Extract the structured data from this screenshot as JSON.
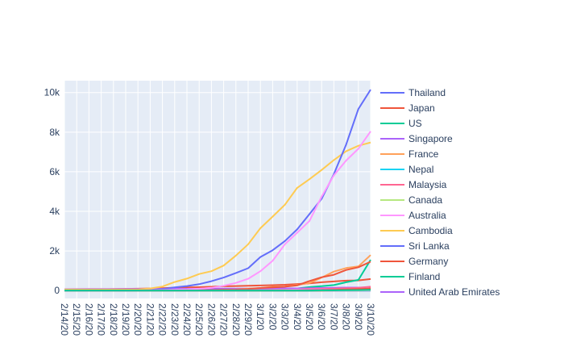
{
  "chart_data": {
    "type": "line",
    "title": "",
    "xlabel": "",
    "ylabel": "",
    "x": [
      "2/14/20",
      "2/15/20",
      "2/16/20",
      "2/17/20",
      "2/18/20",
      "2/19/20",
      "2/20/20",
      "2/21/20",
      "2/22/20",
      "2/23/20",
      "2/24/20",
      "2/25/20",
      "2/26/20",
      "2/27/20",
      "2/28/20",
      "2/29/20",
      "3/1/20",
      "3/2/20",
      "3/3/20",
      "3/4/20",
      "3/5/20",
      "3/6/20",
      "3/7/20",
      "3/8/20",
      "3/9/20",
      "3/10/20"
    ],
    "ylim": [
      -400,
      10600
    ],
    "yticks": [
      0,
      2000,
      4000,
      6000,
      8000,
      10000
    ],
    "ytick_labels": [
      "0",
      "2k",
      "4k",
      "6k",
      "8k",
      "10k"
    ],
    "grid": true,
    "plot_bg": "#e5ecf6",
    "legend_position": "right",
    "series": [
      {
        "name": "Thailand",
        "color": "#636efa",
        "values": [
          33,
          33,
          34,
          35,
          35,
          35,
          35,
          35,
          35,
          35,
          35,
          37,
          40,
          40,
          41,
          42,
          42,
          43,
          43,
          43,
          47,
          48,
          50,
          50,
          50,
          53
        ]
      },
      {
        "name": "Japan",
        "color": "#ef553b",
        "values": [
          33,
          53,
          59,
          66,
          74,
          84,
          94,
          105,
          122,
          147,
          159,
          170,
          189,
          214,
          228,
          241,
          256,
          274,
          293,
          331,
          360,
          420,
          461,
          502,
          511,
          581
        ]
      },
      {
        "name": "US",
        "color": "#00cc96",
        "values": [
          15,
          15,
          15,
          15,
          15,
          15,
          15,
          15,
          15,
          15,
          15,
          15,
          15,
          16,
          16,
          24,
          30,
          53,
          73,
          104,
          174,
          221,
          278,
          417,
          537,
          1550
        ]
      },
      {
        "name": "Singapore",
        "color": "#ab63fa",
        "values": [
          67,
          72,
          75,
          77,
          81,
          84,
          84,
          85,
          85,
          89,
          89,
          91,
          93,
          96,
          98,
          102,
          106,
          108,
          110,
          110,
          117,
          130,
          138,
          150,
          150,
          160
        ]
      },
      {
        "name": "France",
        "color": "#ffa15a",
        "values": [
          11,
          12,
          12,
          12,
          12,
          12,
          12,
          12,
          12,
          12,
          12,
          14,
          18,
          38,
          57,
          100,
          130,
          191,
          204,
          288,
          380,
          656,
          957,
          1134,
          1217,
          1792
        ]
      },
      {
        "name": "Nepal",
        "color": "#19d3f3",
        "values": [
          1,
          1,
          1,
          1,
          1,
          1,
          1,
          1,
          1,
          1,
          1,
          1,
          1,
          1,
          1,
          1,
          1,
          1,
          1,
          1,
          1,
          1,
          1,
          1,
          1,
          1
        ]
      },
      {
        "name": "Malaysia",
        "color": "#ff6692",
        "values": [
          19,
          22,
          22,
          22,
          22,
          22,
          22,
          22,
          22,
          22,
          22,
          22,
          22,
          23,
          25,
          29,
          29,
          36,
          50,
          50,
          83,
          93,
          99,
          117,
          129,
          149
        ]
      },
      {
        "name": "Canada",
        "color": "#b6e880",
        "values": [
          7,
          7,
          7,
          8,
          8,
          8,
          8,
          9,
          9,
          9,
          9,
          11,
          11,
          13,
          14,
          20,
          24,
          27,
          30,
          33,
          37,
          49,
          54,
          64,
          77,
          79
        ]
      },
      {
        "name": "Australia",
        "color": "#ff97ff",
        "values": [
          15,
          15,
          15,
          15,
          15,
          15,
          15,
          15,
          22,
          22,
          22,
          22,
          23,
          23,
          25,
          26,
          28,
          30,
          39,
          52,
          55,
          60,
          63,
          76,
          91,
          107
        ]
      },
      {
        "name": "Cambodia",
        "color": "#fecb52",
        "values": [
          1,
          1,
          1,
          1,
          1,
          1,
          1,
          1,
          1,
          1,
          1,
          1,
          1,
          1,
          1,
          1,
          1,
          1,
          1,
          1,
          1,
          1,
          2,
          2,
          2,
          2
        ]
      },
      {
        "name": "Sri Lanka",
        "color": "#636efa",
        "values": [
          1,
          1,
          1,
          1,
          1,
          1,
          1,
          1,
          1,
          1,
          1,
          1,
          1,
          1,
          1,
          1,
          1,
          1,
          1,
          1,
          1,
          1,
          1,
          1,
          1,
          1
        ]
      },
      {
        "name": "Germany",
        "color": "#ef553b",
        "values": [
          16,
          16,
          16,
          16,
          16,
          16,
          16,
          16,
          16,
          16,
          16,
          17,
          27,
          46,
          48,
          79,
          130,
          159,
          196,
          262,
          482,
          670,
          799,
          1040,
          1176,
          1457
        ]
      },
      {
        "name": "Finland",
        "color": "#00cc96",
        "values": [
          1,
          1,
          1,
          1,
          1,
          1,
          1,
          1,
          1,
          1,
          1,
          1,
          2,
          2,
          2,
          3,
          6,
          6,
          6,
          6,
          12,
          15,
          19,
          23,
          30,
          40
        ]
      },
      {
        "name": "United Arab Emirates",
        "color": "#ab63fa",
        "values": [
          8,
          8,
          9,
          9,
          9,
          9,
          9,
          9,
          11,
          13,
          13,
          13,
          13,
          13,
          19,
          21,
          21,
          21,
          27,
          27,
          29,
          29,
          45,
          45,
          45,
          74
        ]
      },
      {
        "name": "",
        "color": "#ffa15a",
        "values": [
          3,
          3,
          3,
          3,
          3,
          3,
          3,
          3,
          3,
          3,
          3,
          3,
          3,
          3,
          3,
          3,
          3,
          3,
          3,
          3,
          3,
          3,
          3,
          3,
          3,
          10
        ]
      },
      {
        "name": "",
        "color": "#19d3f3",
        "values": [
          0,
          0,
          0,
          0,
          0,
          0,
          0,
          0,
          0,
          0,
          0,
          2,
          3,
          3,
          7,
          10,
          11,
          12,
          13,
          16,
          19,
          22,
          25,
          30,
          37,
          86
        ]
      },
      {
        "name": "",
        "color": "#ff6692",
        "values": [
          0,
          0,
          0,
          0,
          0,
          0,
          0,
          0,
          0,
          0,
          0,
          2,
          3,
          3,
          5,
          8,
          12,
          14,
          24,
          27,
          30,
          45,
          83,
          93,
          139,
          193
        ]
      },
      {
        "name": "",
        "color": "#b6e880",
        "values": [
          0,
          0,
          0,
          0,
          0,
          0,
          0,
          0,
          0,
          0,
          0,
          0,
          1,
          1,
          2,
          3,
          3,
          5,
          6,
          6,
          8,
          10,
          12,
          15,
          18,
          24
        ]
      },
      {
        "name": "",
        "color": "#ff97ff",
        "values": [
          0,
          0,
          0,
          0,
          0,
          0,
          0,
          0,
          0,
          0,
          0,
          1,
          1,
          3,
          7,
          9,
          10,
          14,
          17,
          19,
          19,
          24,
          30,
          38,
          39,
          56
        ]
      },
      {
        "name": "",
        "color": "#fecb52",
        "values": [
          0,
          0,
          0,
          0,
          0,
          0,
          0,
          0,
          0,
          0,
          0,
          0,
          0,
          0,
          0,
          0,
          0,
          1,
          3,
          5,
          8,
          12,
          13,
          13,
          19,
          24
        ]
      },
      {
        "name": "",
        "color": "#636efa",
        "values": [
          0,
          0,
          0,
          0,
          0,
          0,
          0,
          0,
          0,
          0,
          0,
          1,
          1,
          1,
          1,
          1,
          1,
          1,
          3,
          4,
          5,
          6,
          9,
          15,
          15,
          32
        ]
      },
      {
        "name": "",
        "color": "#ef553b",
        "values": [
          0,
          0,
          0,
          0,
          0,
          0,
          0,
          0,
          0,
          0,
          0,
          0,
          0,
          0,
          1,
          1,
          1,
          1,
          1,
          6,
          18,
          27,
          34,
          52,
          73,
          100
        ]
      },
      {
        "name": "",
        "color": "#00cc96",
        "values": [
          0,
          0,
          0,
          0,
          0,
          0,
          0,
          0,
          0,
          0,
          0,
          0,
          0,
          0,
          0,
          0,
          1,
          1,
          1,
          2,
          2,
          10,
          18,
          31,
          46,
          90
        ]
      },
      {
        "name": "",
        "color": "#ab63fa",
        "values": [
          0,
          0,
          0,
          0,
          0,
          0,
          0,
          0,
          0,
          0,
          0,
          0,
          0,
          1,
          1,
          2,
          3,
          3,
          6,
          8,
          12,
          15,
          23,
          28,
          38,
          45
        ]
      },
      {
        "name": "",
        "color": "#ffa15a",
        "values": [
          0,
          0,
          0,
          0,
          0,
          0,
          0,
          0,
          0,
          0,
          0,
          0,
          0,
          0,
          1,
          1,
          1,
          2,
          2,
          2,
          3,
          4,
          8,
          15,
          20,
          38
        ]
      },
      {
        "name": "",
        "color": "#19d3f3",
        "values": [
          0,
          0,
          0,
          0,
          0,
          0,
          0,
          0,
          0,
          0,
          0,
          0,
          1,
          1,
          1,
          1,
          1,
          1,
          1,
          2,
          4,
          6,
          9,
          12,
          13,
          18
        ]
      },
      {
        "name": "",
        "color": "#ff6692",
        "values": [
          0,
          0,
          0,
          0,
          0,
          0,
          0,
          0,
          0,
          0,
          0,
          0,
          0,
          0,
          0,
          1,
          1,
          1,
          3,
          3,
          4,
          12,
          13,
          13,
          15,
          28
        ]
      },
      {
        "name": "",
        "color": "#b6e880",
        "values": [
          0,
          0,
          0,
          0,
          0,
          0,
          0,
          0,
          0,
          0,
          0,
          0,
          0,
          0,
          0,
          1,
          1,
          1,
          1,
          5,
          6,
          6,
          7,
          7,
          9,
          15
        ]
      },
      {
        "name": "",
        "color": "#ff97ff",
        "values": [
          0,
          0,
          0,
          0,
          0,
          0,
          0,
          0,
          0,
          0,
          0,
          0,
          1,
          1,
          1,
          2,
          2,
          3,
          3,
          4,
          6,
          8,
          13,
          16,
          19,
          22
        ]
      },
      {
        "name": "",
        "color": "#fecb52",
        "values": [
          51,
          51,
          51,
          51,
          51,
          51,
          51,
          104,
          204,
          433,
          602,
          833,
          977,
          1261,
          1766,
          2337,
          3150,
          3736,
          4335,
          5186,
          5621,
          6088,
          6593,
          7041,
          7314,
          7478
        ]
      },
      {
        "name": "",
        "color": "#636efa",
        "values": [
          0,
          0,
          0,
          0,
          0,
          0,
          2,
          17,
          79,
          157,
          229,
          323,
          470,
          655,
          889,
          1128,
          1694,
          2036,
          2502,
          3089,
          3858,
          4636,
          5883,
          7375,
          9172,
          10149
        ]
      },
      {
        "name": "",
        "color": "#ff97ff",
        "values": [
          0,
          0,
          0,
          0,
          0,
          2,
          5,
          18,
          28,
          43,
          61,
          95,
          139,
          245,
          388,
          593,
          978,
          1501,
          2336,
          2922,
          3513,
          4747,
          5823,
          6566,
          7161,
          8042
        ]
      },
      {
        "name": "",
        "color": "#ef553b",
        "values": [
          0,
          0,
          0,
          0,
          0,
          0,
          0,
          0,
          0,
          0,
          0,
          0,
          0,
          0,
          0,
          0,
          0,
          1,
          1,
          1,
          2,
          3,
          20,
          45,
          60,
          100
        ]
      },
      {
        "name": "",
        "color": "#00cc96",
        "values": [
          0,
          0,
          0,
          0,
          0,
          0,
          0,
          0,
          0,
          0,
          0,
          0,
          0,
          0,
          0,
          0,
          0,
          0,
          1,
          1,
          1,
          7,
          11,
          20,
          22,
          39
        ]
      }
    ]
  }
}
